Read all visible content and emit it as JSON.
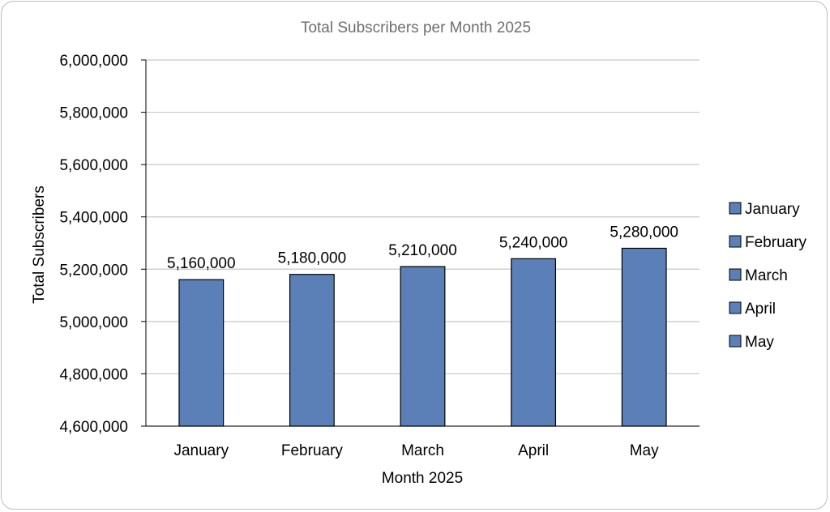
{
  "chart_data": {
    "type": "bar",
    "title": "Total Subscribers per Month 2025",
    "xlabel": "Month 2025",
    "ylabel": "Total Subscribers",
    "categories": [
      "January",
      "February",
      "March",
      "April",
      "May"
    ],
    "values": [
      5160000,
      5180000,
      5210000,
      5240000,
      5280000
    ],
    "data_labels": [
      "5,160,000",
      "5,180,000",
      "5,210,000",
      "5,240,000",
      "5,280,000"
    ],
    "ylim": [
      4600000,
      6000000
    ],
    "yticks": [
      4600000,
      4800000,
      5000000,
      5200000,
      5400000,
      5600000,
      5800000,
      6000000
    ],
    "ytick_labels": [
      "4,600,000",
      "4,800,000",
      "5,000,000",
      "5,200,000",
      "5,400,000",
      "5,600,000",
      "5,800,000",
      "6,000,000"
    ],
    "grid": true,
    "legend_position": "right",
    "legend_entries": [
      "January",
      "February",
      "March",
      "April",
      "May"
    ],
    "colors": {
      "bar": "#5b80b8",
      "bar_edge": "#000000",
      "grid": "#c8c8c8",
      "title": "#6e6e6e"
    }
  }
}
